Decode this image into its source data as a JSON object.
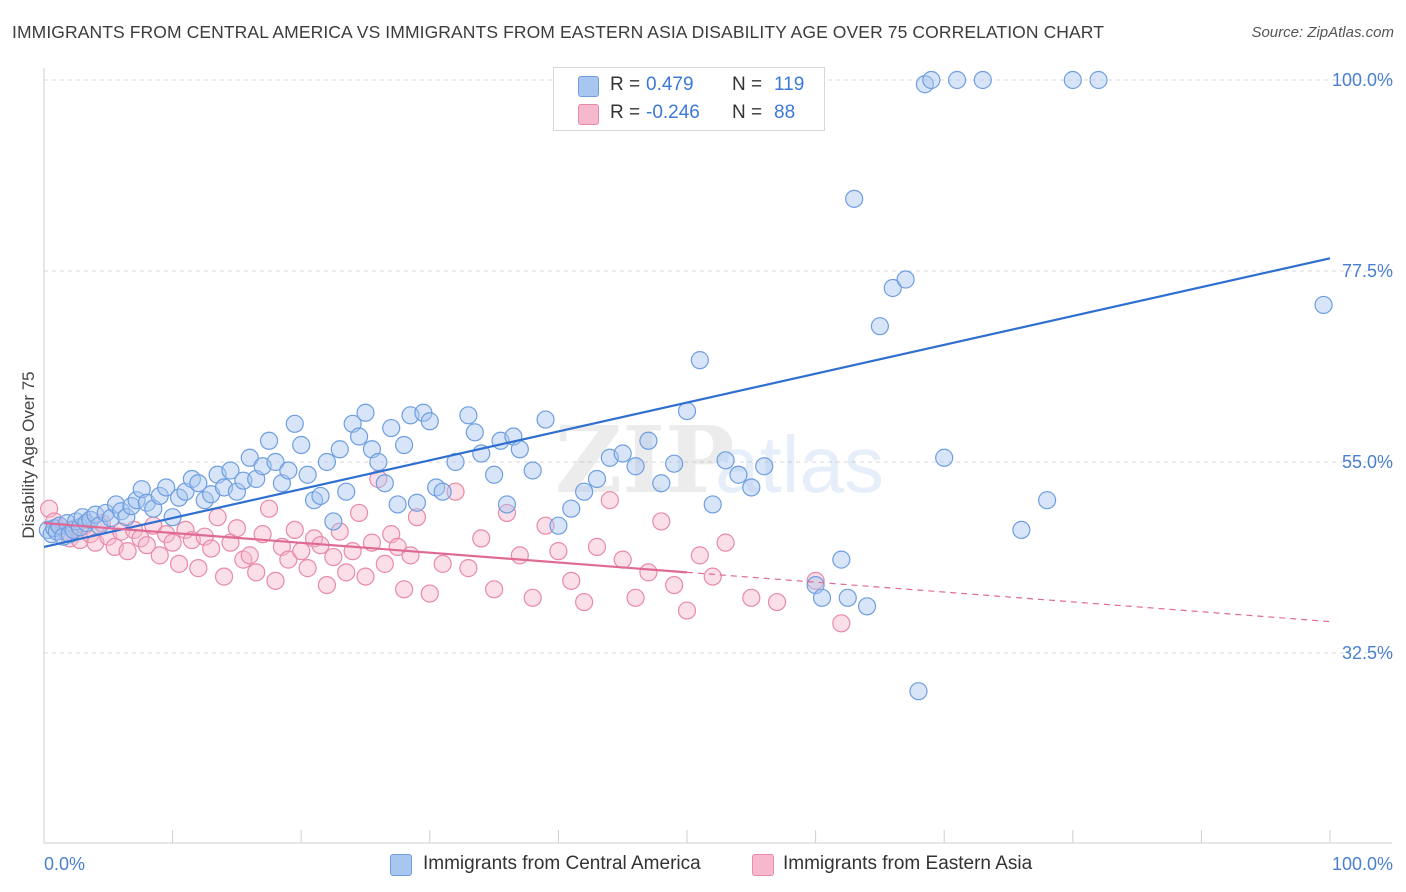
{
  "title": "IMMIGRANTS FROM CENTRAL AMERICA VS IMMIGRANTS FROM EASTERN ASIA DISABILITY AGE OVER 75 CORRELATION CHART",
  "source": "Source: ZipAtlas.com",
  "watermark": {
    "zip": "ZIP",
    "atlas": "atlas"
  },
  "legend": {
    "r_label": "R =",
    "n_label": "N =",
    "series": [
      {
        "r": "0.479",
        "n": "119"
      },
      {
        "r": "-0.246",
        "n": "88"
      }
    ]
  },
  "bottom_legend": [
    "Immigrants from Central America",
    "Immigrants from Eastern Asia"
  ],
  "colors": {
    "blue_fill": "#a8c6f0",
    "blue_stroke": "#6e9ee0",
    "blue_line": "#2f6fd0",
    "pink_fill": "#f6b8cc",
    "pink_stroke": "#e88aa8",
    "pink_line": "#e06a96",
    "tick_label": "#4a7fd1",
    "grid": "#d9d9d9"
  },
  "chart_data": {
    "type": "scatter",
    "title": "IMMIGRANTS FROM CENTRAL AMERICA VS IMMIGRANTS FROM EASTERN ASIA DISABILITY AGE OVER 75 CORRELATION CHART",
    "xlabel": "",
    "ylabel": "Disability Age Over 75",
    "x_tick_labels": [
      "0.0%",
      "100.0%"
    ],
    "y_tick_labels": [
      "32.5%",
      "55.0%",
      "77.5%",
      "100.0%"
    ],
    "y_ticks": [
      32.5,
      55.0,
      77.5,
      100.0
    ],
    "xlim": [
      0,
      100
    ],
    "ylim": [
      10,
      102
    ],
    "grid": true,
    "legend_position": "top-center",
    "series": [
      {
        "name": "Immigrants from Central America",
        "r": 0.479,
        "n": 119,
        "trend": {
          "x0": 0,
          "y0": 45.0,
          "x1": 100,
          "y1": 79.0,
          "dash_from": null
        },
        "points": [
          [
            0.3,
            47.0
          ],
          [
            0.6,
            46.5
          ],
          [
            0.8,
            47.2
          ],
          [
            1.0,
            46.8
          ],
          [
            1.2,
            47.5
          ],
          [
            1.5,
            46.2
          ],
          [
            1.8,
            47.8
          ],
          [
            2.0,
            46.5
          ],
          [
            2.3,
            47.0
          ],
          [
            2.5,
            48.0
          ],
          [
            2.8,
            47.3
          ],
          [
            3.0,
            48.5
          ],
          [
            3.3,
            47.8
          ],
          [
            3.6,
            48.2
          ],
          [
            4.0,
            48.8
          ],
          [
            4.3,
            47.5
          ],
          [
            4.8,
            49.0
          ],
          [
            5.2,
            48.4
          ],
          [
            5.6,
            50.0
          ],
          [
            6.0,
            49.2
          ],
          [
            6.4,
            48.5
          ],
          [
            6.8,
            49.8
          ],
          [
            7.2,
            50.5
          ],
          [
            7.6,
            51.8
          ],
          [
            8.0,
            50.2
          ],
          [
            8.5,
            49.5
          ],
          [
            9.0,
            51.0
          ],
          [
            9.5,
            52.0
          ],
          [
            10.0,
            48.5
          ],
          [
            10.5,
            50.8
          ],
          [
            11.0,
            51.5
          ],
          [
            11.5,
            53.0
          ],
          [
            12.0,
            52.5
          ],
          [
            12.5,
            50.5
          ],
          [
            13.0,
            51.2
          ],
          [
            13.5,
            53.5
          ],
          [
            14.0,
            52.0
          ],
          [
            14.5,
            54.0
          ],
          [
            15.0,
            51.5
          ],
          [
            15.5,
            52.8
          ],
          [
            16.0,
            55.5
          ],
          [
            16.5,
            53.0
          ],
          [
            17.0,
            54.5
          ],
          [
            17.5,
            57.5
          ],
          [
            18.0,
            55.0
          ],
          [
            18.5,
            52.5
          ],
          [
            19.0,
            54.0
          ],
          [
            19.5,
            59.5
          ],
          [
            20.0,
            57.0
          ],
          [
            20.5,
            53.5
          ],
          [
            21.0,
            50.5
          ],
          [
            21.5,
            51.0
          ],
          [
            22.0,
            55.0
          ],
          [
            22.5,
            48.0
          ],
          [
            23.0,
            56.5
          ],
          [
            23.5,
            51.5
          ],
          [
            24.0,
            59.5
          ],
          [
            24.5,
            58.0
          ],
          [
            25.0,
            60.8
          ],
          [
            25.5,
            56.5
          ],
          [
            26.0,
            55.0
          ],
          [
            26.5,
            52.5
          ],
          [
            27.0,
            59.0
          ],
          [
            27.5,
            50.0
          ],
          [
            28.0,
            57.0
          ],
          [
            28.5,
            60.5
          ],
          [
            29.0,
            50.2
          ],
          [
            29.5,
            60.8
          ],
          [
            30.0,
            59.8
          ],
          [
            30.5,
            52.0
          ],
          [
            31.0,
            51.5
          ],
          [
            32.0,
            55.0
          ],
          [
            33.0,
            60.5
          ],
          [
            33.5,
            58.5
          ],
          [
            34.0,
            56.0
          ],
          [
            35.0,
            53.5
          ],
          [
            35.5,
            57.5
          ],
          [
            36.0,
            50.0
          ],
          [
            36.5,
            58.0
          ],
          [
            37.0,
            56.5
          ],
          [
            38.0,
            54.0
          ],
          [
            39.0,
            60.0
          ],
          [
            40.0,
            47.5
          ],
          [
            41.0,
            49.5
          ],
          [
            42.0,
            51.5
          ],
          [
            43.0,
            53.0
          ],
          [
            44.0,
            55.5
          ],
          [
            45.0,
            56.0
          ],
          [
            46.0,
            54.5
          ],
          [
            47.0,
            57.5
          ],
          [
            48.0,
            52.5
          ],
          [
            49.0,
            54.8
          ],
          [
            50.0,
            61.0
          ],
          [
            51.0,
            67.0
          ],
          [
            52.0,
            50.0
          ],
          [
            53.0,
            55.2
          ],
          [
            54.0,
            53.5
          ],
          [
            55.0,
            52.0
          ],
          [
            56.0,
            54.5
          ],
          [
            60.0,
            40.5
          ],
          [
            60.5,
            39.0
          ],
          [
            62.0,
            43.5
          ],
          [
            62.5,
            39.0
          ],
          [
            63.0,
            86.0
          ],
          [
            64.0,
            38.0
          ],
          [
            65.0,
            71.0
          ],
          [
            66.0,
            75.5
          ],
          [
            67.0,
            76.5
          ],
          [
            68.0,
            28.0
          ],
          [
            68.5,
            99.5
          ],
          [
            69.0,
            100.0
          ],
          [
            70.0,
            55.5
          ],
          [
            71.0,
            100.0
          ],
          [
            73.0,
            100.0
          ],
          [
            76.0,
            47.0
          ],
          [
            78.0,
            50.5
          ],
          [
            80.0,
            100.0
          ],
          [
            82.0,
            100.0
          ],
          [
            99.5,
            73.5
          ]
        ]
      },
      {
        "name": "Immigrants from Eastern Asia",
        "r": -0.246,
        "n": 88,
        "trend": {
          "x0": 0,
          "y0": 47.8,
          "x1": 100,
          "y1": 36.2,
          "dash_from": 50
        },
        "points": [
          [
            0.4,
            49.5
          ],
          [
            0.8,
            48.0
          ],
          [
            1.2,
            47.5
          ],
          [
            1.6,
            46.8
          ],
          [
            2.0,
            46.0
          ],
          [
            2.4,
            47.2
          ],
          [
            2.8,
            45.8
          ],
          [
            3.2,
            47.5
          ],
          [
            3.6,
            46.5
          ],
          [
            4.0,
            45.5
          ],
          [
            4.5,
            47.8
          ],
          [
            5.0,
            46.2
          ],
          [
            5.5,
            45.0
          ],
          [
            6.0,
            46.8
          ],
          [
            6.5,
            44.5
          ],
          [
            7.0,
            47.0
          ],
          [
            7.5,
            46.0
          ],
          [
            8.0,
            45.2
          ],
          [
            8.5,
            47.5
          ],
          [
            9.0,
            44.0
          ],
          [
            9.5,
            46.5
          ],
          [
            10.0,
            45.5
          ],
          [
            10.5,
            43.0
          ],
          [
            11.0,
            47.0
          ],
          [
            11.5,
            45.8
          ],
          [
            12.0,
            42.5
          ],
          [
            12.5,
            46.2
          ],
          [
            13.0,
            44.8
          ],
          [
            13.5,
            48.5
          ],
          [
            14.0,
            41.5
          ],
          [
            14.5,
            45.5
          ],
          [
            15.0,
            47.2
          ],
          [
            15.5,
            43.5
          ],
          [
            16.0,
            44.0
          ],
          [
            16.5,
            42.0
          ],
          [
            17.0,
            46.5
          ],
          [
            17.5,
            49.5
          ],
          [
            18.0,
            41.0
          ],
          [
            18.5,
            45.0
          ],
          [
            19.0,
            43.5
          ],
          [
            19.5,
            47.0
          ],
          [
            20.0,
            44.5
          ],
          [
            20.5,
            42.5
          ],
          [
            21.0,
            46.0
          ],
          [
            21.5,
            45.2
          ],
          [
            22.0,
            40.5
          ],
          [
            22.5,
            43.8
          ],
          [
            23.0,
            46.8
          ],
          [
            23.5,
            42.0
          ],
          [
            24.0,
            44.5
          ],
          [
            24.5,
            49.0
          ],
          [
            25.0,
            41.5
          ],
          [
            25.5,
            45.5
          ],
          [
            26.0,
            53.0
          ],
          [
            26.5,
            43.0
          ],
          [
            27.0,
            46.5
          ],
          [
            27.5,
            45.0
          ],
          [
            28.0,
            40.0
          ],
          [
            28.5,
            44.0
          ],
          [
            29.0,
            48.5
          ],
          [
            30.0,
            39.5
          ],
          [
            31.0,
            43.0
          ],
          [
            32.0,
            51.5
          ],
          [
            33.0,
            42.5
          ],
          [
            34.0,
            46.0
          ],
          [
            35.0,
            40.0
          ],
          [
            36.0,
            49.0
          ],
          [
            37.0,
            44.0
          ],
          [
            38.0,
            39.0
          ],
          [
            39.0,
            47.5
          ],
          [
            40.0,
            44.5
          ],
          [
            41.0,
            41.0
          ],
          [
            42.0,
            38.5
          ],
          [
            43.0,
            45.0
          ],
          [
            44.0,
            50.5
          ],
          [
            45.0,
            43.5
          ],
          [
            46.0,
            39.0
          ],
          [
            47.0,
            42.0
          ],
          [
            48.0,
            48.0
          ],
          [
            49.0,
            40.5
          ],
          [
            50.0,
            37.5
          ],
          [
            51.0,
            44.0
          ],
          [
            52.0,
            41.5
          ],
          [
            53.0,
            45.5
          ],
          [
            55.0,
            39.0
          ],
          [
            57.0,
            38.5
          ],
          [
            60.0,
            41.0
          ],
          [
            62.0,
            36.0
          ]
        ]
      }
    ]
  }
}
